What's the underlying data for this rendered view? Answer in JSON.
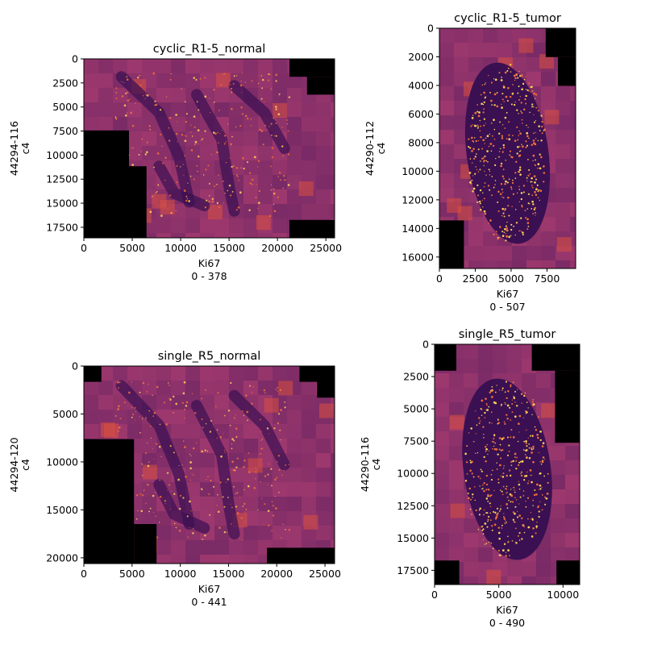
{
  "colors": {
    "background": "#000000",
    "tile_base": "#7b2c7e",
    "tile_edge": "#d8513f",
    "tissue_bright": "#fcd25b",
    "tissue_mid": "#f0703a",
    "tissue_dark": "#3a1052",
    "colormap": "inferno"
  },
  "chart_data": [
    {
      "type": "heatmap",
      "title": "cyclic_R1-5_normal",
      "ylabel": "44294-116\nc4",
      "xlabel": "Ki67",
      "range_label": "0 - 378",
      "xlim": [
        0,
        25900
      ],
      "ylim": [
        18600,
        0
      ],
      "xticks": [
        0,
        5000,
        10000,
        15000,
        20000,
        25000
      ],
      "yticks": [
        0,
        2500,
        5000,
        7500,
        10000,
        12500,
        15000,
        17500
      ],
      "tissue": "normal"
    },
    {
      "type": "heatmap",
      "title": "cyclic_R1-5_tumor",
      "ylabel": "44290-112\nc4",
      "xlabel": "Ki67",
      "range_label": "0 - 507",
      "xlim": [
        0,
        9500
      ],
      "ylim": [
        16800,
        0
      ],
      "xticks": [
        0,
        2500,
        5000,
        7500
      ],
      "yticks": [
        0,
        2000,
        4000,
        6000,
        8000,
        10000,
        12000,
        14000,
        16000
      ],
      "tissue": "tumor"
    },
    {
      "type": "heatmap",
      "title": "single_R5_normal",
      "ylabel": "44294-120\nc4",
      "xlabel": "Ki67",
      "range_label": "0 - 441",
      "xlim": [
        0,
        26000
      ],
      "ylim": [
        20600,
        0
      ],
      "xticks": [
        0,
        5000,
        10000,
        15000,
        20000,
        25000
      ],
      "yticks": [
        0,
        5000,
        10000,
        15000,
        20000
      ],
      "tissue": "normal"
    },
    {
      "type": "heatmap",
      "title": "single_R5_tumor",
      "ylabel": "44290-116\nc4",
      "xlabel": "Ki67",
      "range_label": "0 - 490",
      "xlim": [
        0,
        11300
      ],
      "ylim": [
        18600,
        0
      ],
      "xticks": [
        0,
        5000,
        10000
      ],
      "yticks": [
        0,
        2500,
        5000,
        7500,
        10000,
        12500,
        15000,
        17500
      ],
      "tissue": "tumor"
    }
  ]
}
